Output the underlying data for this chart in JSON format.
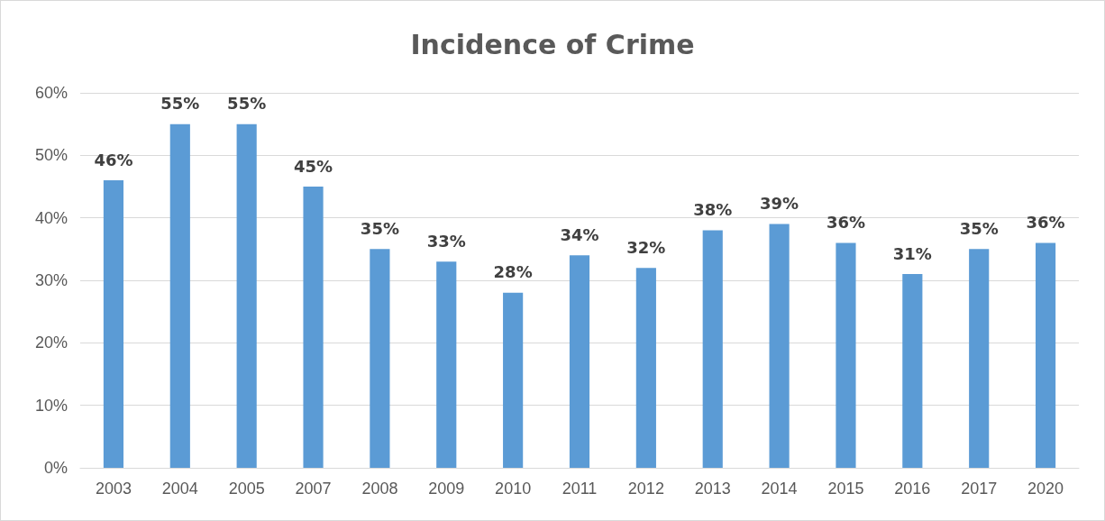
{
  "chart_data": {
    "type": "bar",
    "title": "Incidence of Crime",
    "categories": [
      "2003",
      "2004",
      "2005",
      "2007",
      "2008",
      "2009",
      "2010",
      "2011",
      "2012",
      "2013",
      "2014",
      "2015",
      "2016",
      "2017",
      "2020"
    ],
    "values": [
      46,
      55,
      55,
      45,
      35,
      33,
      28,
      34,
      32,
      38,
      39,
      36,
      31,
      35,
      36
    ],
    "value_labels": [
      "46%",
      "55%",
      "55%",
      "45%",
      "35%",
      "33%",
      "28%",
      "34%",
      "32%",
      "38%",
      "39%",
      "36%",
      "31%",
      "35%",
      "36%"
    ],
    "color": "#5b9bd5",
    "ylim": [
      0,
      60
    ],
    "yticks": [
      {
        "value": 0,
        "label": "0%"
      },
      {
        "value": 10,
        "label": "10%"
      },
      {
        "value": 20,
        "label": "20%"
      },
      {
        "value": 30,
        "label": "30%"
      },
      {
        "value": 40,
        "label": "40%"
      },
      {
        "value": 50,
        "label": "50%"
      },
      {
        "value": 60,
        "label": "60%"
      }
    ],
    "grid": "y"
  }
}
